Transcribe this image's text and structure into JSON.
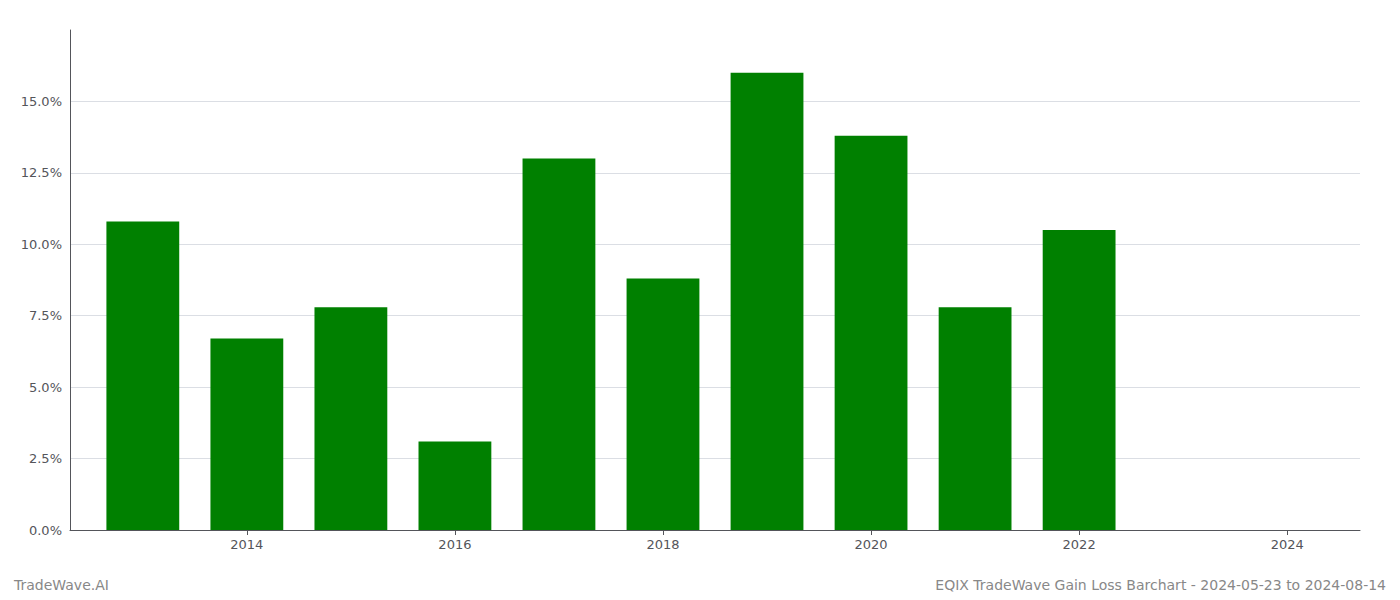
{
  "chart_data": {
    "type": "bar",
    "x": [
      2013,
      2014,
      2015,
      2016,
      2017,
      2018,
      2019,
      2020,
      2021,
      2022,
      2023
    ],
    "values": [
      0.108,
      0.067,
      0.078,
      0.031,
      0.13,
      0.088,
      0.16,
      0.138,
      0.078,
      0.105,
      0.0
    ],
    "color": "#008000",
    "xlim": [
      2012.3,
      2024.7
    ],
    "xticks": [
      2014,
      2016,
      2018,
      2020,
      2022,
      2024
    ],
    "ylim": [
      0.0,
      0.175
    ],
    "yticks": [
      {
        "value": 0.0,
        "label": "0.0%"
      },
      {
        "value": 0.025,
        "label": "2.5%"
      },
      {
        "value": 0.05,
        "label": "5.0%"
      },
      {
        "value": 0.075,
        "label": "7.5%"
      },
      {
        "value": 0.1,
        "label": "10.0%"
      },
      {
        "value": 0.125,
        "label": "12.5%"
      },
      {
        "value": 0.15,
        "label": "15.0%"
      }
    ],
    "grid": true,
    "annotations": [
      "TradeWave.AI",
      "EQIX TradeWave Gain Loss Barchart - 2024-05-23 to 2024-08-14"
    ]
  }
}
